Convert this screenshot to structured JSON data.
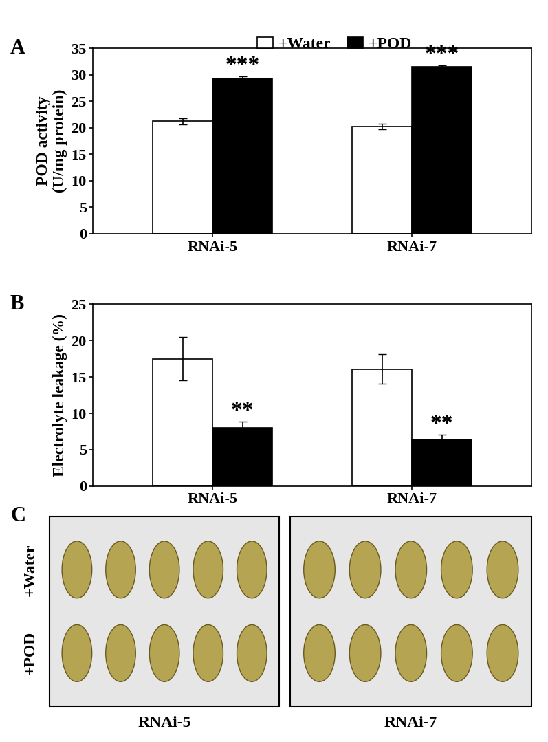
{
  "chart_data": [
    {
      "type": "bar",
      "title": "A",
      "y_label": "POD activity\n(U/mg protein)",
      "categories": [
        "RNAi-5",
        "RNAi-7"
      ],
      "series": [
        {
          "name": "+Water",
          "color": "#ffffff",
          "values": [
            21.2,
            20.2
          ],
          "errors": [
            0.6,
            0.5
          ]
        },
        {
          "name": "+POD",
          "color": "#000000",
          "values": [
            29.3,
            31.5
          ],
          "errors": [
            0.4,
            0.3
          ],
          "significance": [
            "***",
            "***"
          ]
        }
      ],
      "ylim": [
        0,
        35
      ],
      "yticks": [
        0,
        5,
        10,
        15,
        20,
        25,
        30,
        35
      ],
      "legend": "upper center"
    },
    {
      "type": "bar",
      "title": "B",
      "y_label": "Electrolyte leakage (%)",
      "categories": [
        "RNAi-5",
        "RNAi-7"
      ],
      "series": [
        {
          "color": "#ffffff",
          "values": [
            17.5,
            16.1
          ],
          "errors": [
            3.0,
            2.0
          ]
        },
        {
          "color": "#000000",
          "values": [
            8.0,
            6.4
          ],
          "errors": [
            0.9,
            0.7
          ],
          "significance": [
            "**",
            "**"
          ]
        }
      ],
      "ylim": [
        0,
        25
      ],
      "yticks": [
        0,
        5,
        10,
        15,
        20,
        25
      ]
    }
  ],
  "panel_c": {
    "label": "C",
    "rows": [
      "+Water",
      "+POD"
    ],
    "columns": [
      "RNAi-5",
      "RNAi-7"
    ]
  }
}
